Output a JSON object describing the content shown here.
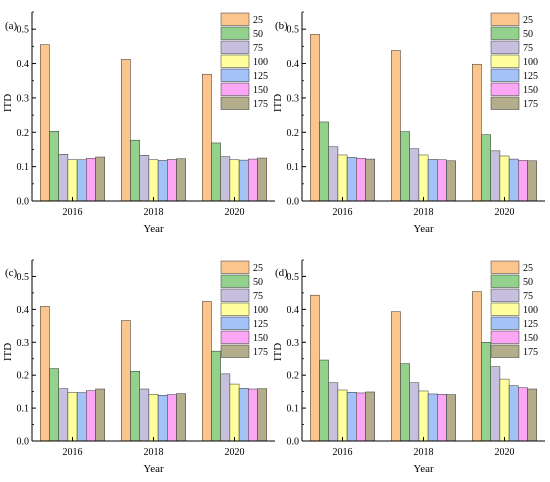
{
  "chart_data": [
    {
      "type": "bar",
      "panel_label": "(a)",
      "categories": [
        "2016",
        "2018",
        "2020"
      ],
      "xlabel": "Year",
      "ylabel": "ITD",
      "ylim": [
        0,
        0.55
      ],
      "yticks": [
        "0.0",
        "0.1",
        "0.2",
        "0.3",
        "0.4",
        "0.5"
      ],
      "legend_position": "top-right",
      "series": [
        {
          "name": "25",
          "values": [
            0.455,
            0.412,
            0.369
          ]
        },
        {
          "name": "50",
          "values": [
            0.203,
            0.177,
            0.169
          ]
        },
        {
          "name": "75",
          "values": [
            0.136,
            0.133,
            0.129
          ]
        },
        {
          "name": "100",
          "values": [
            0.12,
            0.12,
            0.12
          ]
        },
        {
          "name": "125",
          "values": [
            0.12,
            0.118,
            0.119
          ]
        },
        {
          "name": "150",
          "values": [
            0.124,
            0.121,
            0.122
          ]
        },
        {
          "name": "175",
          "values": [
            0.128,
            0.123,
            0.125
          ]
        }
      ]
    },
    {
      "type": "bar",
      "panel_label": "(b)",
      "categories": [
        "2016",
        "2018",
        "2020"
      ],
      "xlabel": "Year",
      "ylabel": "ITD",
      "ylim": [
        0,
        0.55
      ],
      "yticks": [
        "0.0",
        "0.1",
        "0.2",
        "0.3",
        "0.4",
        "0.5"
      ],
      "legend_position": "top-right",
      "series": [
        {
          "name": "25",
          "values": [
            0.485,
            0.438,
            0.398
          ]
        },
        {
          "name": "50",
          "values": [
            0.23,
            0.202,
            0.193
          ]
        },
        {
          "name": "75",
          "values": [
            0.158,
            0.152,
            0.146
          ]
        },
        {
          "name": "100",
          "values": [
            0.134,
            0.134,
            0.131
          ]
        },
        {
          "name": "125",
          "values": [
            0.127,
            0.121,
            0.122
          ]
        },
        {
          "name": "150",
          "values": [
            0.124,
            0.12,
            0.118
          ]
        },
        {
          "name": "175",
          "values": [
            0.122,
            0.117,
            0.117
          ]
        }
      ]
    },
    {
      "type": "bar",
      "panel_label": "(c)",
      "categories": [
        "2016",
        "2018",
        "2020"
      ],
      "xlabel": "Year",
      "ylabel": "ITD",
      "ylim": [
        0,
        0.55
      ],
      "yticks": [
        "0.0",
        "0.1",
        "0.2",
        "0.3",
        "0.4",
        "0.5"
      ],
      "legend_position": "top-right",
      "series": [
        {
          "name": "25",
          "values": [
            0.409,
            0.366,
            0.424
          ]
        },
        {
          "name": "50",
          "values": [
            0.22,
            0.212,
            0.273
          ]
        },
        {
          "name": "75",
          "values": [
            0.159,
            0.158,
            0.204
          ]
        },
        {
          "name": "100",
          "values": [
            0.147,
            0.142,
            0.173
          ]
        },
        {
          "name": "125",
          "values": [
            0.147,
            0.139,
            0.16
          ]
        },
        {
          "name": "150",
          "values": [
            0.153,
            0.141,
            0.158
          ]
        },
        {
          "name": "175",
          "values": [
            0.158,
            0.144,
            0.159
          ]
        }
      ]
    },
    {
      "type": "bar",
      "panel_label": "(d)",
      "categories": [
        "2016",
        "2018",
        "2020"
      ],
      "xlabel": "Year",
      "ylabel": "ITD",
      "ylim": [
        0,
        0.55
      ],
      "yticks": [
        "0.0",
        "0.1",
        "0.2",
        "0.3",
        "0.4",
        "0.5"
      ],
      "legend_position": "top-right",
      "series": [
        {
          "name": "25",
          "values": [
            0.443,
            0.393,
            0.454
          ]
        },
        {
          "name": "50",
          "values": [
            0.246,
            0.235,
            0.3
          ]
        },
        {
          "name": "75",
          "values": [
            0.177,
            0.177,
            0.226
          ]
        },
        {
          "name": "100",
          "values": [
            0.155,
            0.152,
            0.188
          ]
        },
        {
          "name": "125",
          "values": [
            0.148,
            0.143,
            0.168
          ]
        },
        {
          "name": "150",
          "values": [
            0.146,
            0.142,
            0.162
          ]
        },
        {
          "name": "175",
          "values": [
            0.149,
            0.141,
            0.158
          ]
        }
      ]
    }
  ],
  "series_colors": {
    "25": "#fbc58e",
    "50": "#93d18d",
    "75": "#c6bfdd",
    "100": "#ffff9d",
    "125": "#a3c2f5",
    "150": "#fba7f5",
    "175": "#b3ad8c"
  }
}
